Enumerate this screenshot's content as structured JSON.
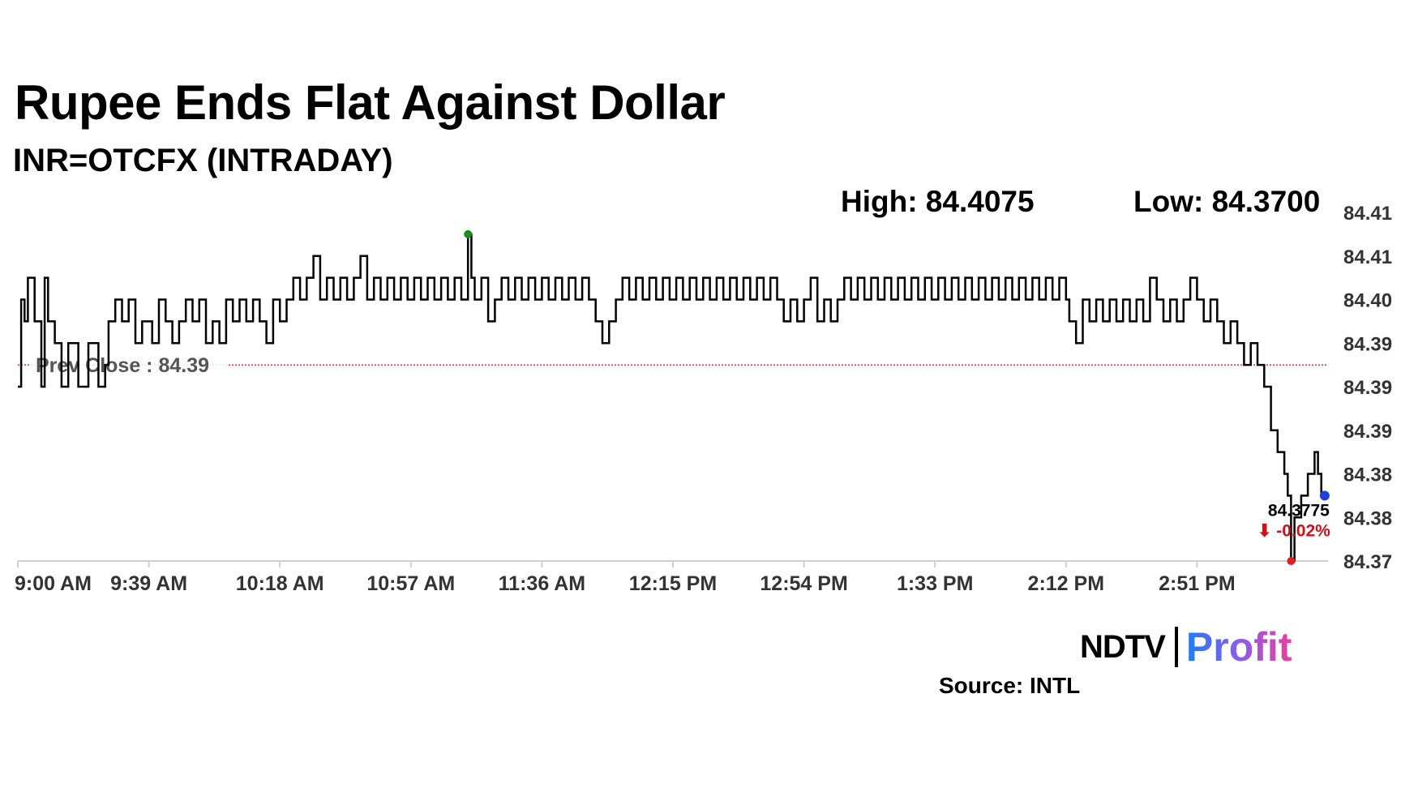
{
  "header": {
    "title": "Rupee Ends Flat Against Dollar",
    "subtitle": "INR=OTCFX (INTRADAY)",
    "high_label": "High: 84.4075",
    "low_label": "Low: 84.3700"
  },
  "footer": {
    "logo_ndtv": "NDTV",
    "logo_profit": "Profit",
    "source": "Source: INTL"
  },
  "chart_data": {
    "type": "line",
    "x_tick_labels": [
      "9:00 AM",
      "9:39 AM",
      "10:18 AM",
      "10:57 AM",
      "11:36 AM",
      "12:15 PM",
      "12:54 PM",
      "1:33 PM",
      "2:12 PM",
      "2:51 PM"
    ],
    "x_tick_minutes": [
      540,
      579,
      618,
      657,
      696,
      735,
      774,
      813,
      852,
      891
    ],
    "x_range_minutes": [
      540,
      930
    ],
    "y_tick_values": [
      84.37,
      84.375,
      84.38,
      84.385,
      84.39,
      84.395,
      84.4,
      84.405,
      84.41
    ],
    "y_tick_labels": [
      "84.37",
      "84.38",
      "84.38",
      "84.39",
      "84.39",
      "84.39",
      "84.40",
      "84.41",
      "84.41"
    ],
    "y_range": [
      84.37,
      84.41
    ],
    "y_axis_position": "right",
    "grid": false,
    "prev_close": {
      "value": 84.3925,
      "label": "Prev Close : 84.39",
      "color": "#e0303a"
    },
    "high": {
      "time_minutes": 674,
      "value": 84.4075,
      "color": "#1a8a1a"
    },
    "low": {
      "time_minutes": 919,
      "value": 84.37,
      "color": "#e02020"
    },
    "last": {
      "time_minutes": 929,
      "value": 84.3775,
      "label": "84.3775",
      "change_label": "⬇ -0.02%",
      "color": "#1f3fd8",
      "change_color": "#d0101a"
    },
    "series": [
      {
        "color": "#000000",
        "points": [
          [
            540,
            84.39
          ],
          [
            541,
            84.4
          ],
          [
            542,
            84.3975
          ],
          [
            543,
            84.4025
          ],
          [
            545,
            84.3975
          ],
          [
            547,
            84.39
          ],
          [
            548,
            84.4025
          ],
          [
            549,
            84.3975
          ],
          [
            551,
            84.395
          ],
          [
            553,
            84.39
          ],
          [
            555,
            84.395
          ],
          [
            558,
            84.39
          ],
          [
            561,
            84.395
          ],
          [
            564,
            84.39
          ],
          [
            566,
            84.3925
          ],
          [
            567,
            84.3975
          ],
          [
            569,
            84.4
          ],
          [
            571,
            84.3975
          ],
          [
            573,
            84.4
          ],
          [
            575,
            84.395
          ],
          [
            577,
            84.3975
          ],
          [
            580,
            84.395
          ],
          [
            582,
            84.4
          ],
          [
            584,
            84.3975
          ],
          [
            586,
            84.395
          ],
          [
            588,
            84.3975
          ],
          [
            590,
            84.4
          ],
          [
            592,
            84.3975
          ],
          [
            594,
            84.4
          ],
          [
            596,
            84.395
          ],
          [
            598,
            84.3975
          ],
          [
            600,
            84.395
          ],
          [
            602,
            84.4
          ],
          [
            604,
            84.3975
          ],
          [
            606,
            84.4
          ],
          [
            608,
            84.3975
          ],
          [
            610,
            84.4
          ],
          [
            612,
            84.3975
          ],
          [
            614,
            84.395
          ],
          [
            616,
            84.4
          ],
          [
            618,
            84.3975
          ],
          [
            620,
            84.4
          ],
          [
            622,
            84.4025
          ],
          [
            624,
            84.4
          ],
          [
            626,
            84.4025
          ],
          [
            628,
            84.405
          ],
          [
            630,
            84.4
          ],
          [
            632,
            84.4025
          ],
          [
            634,
            84.4
          ],
          [
            636,
            84.4025
          ],
          [
            638,
            84.4
          ],
          [
            640,
            84.4025
          ],
          [
            642,
            84.405
          ],
          [
            644,
            84.4
          ],
          [
            646,
            84.4025
          ],
          [
            648,
            84.4
          ],
          [
            650,
            84.4025
          ],
          [
            652,
            84.4
          ],
          [
            654,
            84.4025
          ],
          [
            656,
            84.4
          ],
          [
            658,
            84.4025
          ],
          [
            660,
            84.4
          ],
          [
            662,
            84.4025
          ],
          [
            664,
            84.4
          ],
          [
            666,
            84.4025
          ],
          [
            668,
            84.4
          ],
          [
            670,
            84.4025
          ],
          [
            672,
            84.4
          ],
          [
            674,
            84.4075
          ],
          [
            675,
            84.4025
          ],
          [
            676,
            84.4
          ],
          [
            678,
            84.4025
          ],
          [
            680,
            84.3975
          ],
          [
            682,
            84.4
          ],
          [
            684,
            84.4025
          ],
          [
            686,
            84.4
          ],
          [
            688,
            84.4025
          ],
          [
            690,
            84.4
          ],
          [
            692,
            84.4025
          ],
          [
            694,
            84.4
          ],
          [
            696,
            84.4025
          ],
          [
            698,
            84.4
          ],
          [
            700,
            84.4025
          ],
          [
            702,
            84.4
          ],
          [
            704,
            84.4025
          ],
          [
            706,
            84.4
          ],
          [
            708,
            84.4025
          ],
          [
            710,
            84.4
          ],
          [
            712,
            84.3975
          ],
          [
            714,
            84.395
          ],
          [
            716,
            84.3975
          ],
          [
            718,
            84.4
          ],
          [
            720,
            84.4025
          ],
          [
            722,
            84.4
          ],
          [
            724,
            84.4025
          ],
          [
            726,
            84.4
          ],
          [
            728,
            84.4025
          ],
          [
            730,
            84.4
          ],
          [
            732,
            84.4025
          ],
          [
            734,
            84.4
          ],
          [
            736,
            84.4025
          ],
          [
            738,
            84.4
          ],
          [
            740,
            84.4025
          ],
          [
            742,
            84.4
          ],
          [
            744,
            84.4025
          ],
          [
            746,
            84.4
          ],
          [
            748,
            84.4025
          ],
          [
            750,
            84.4
          ],
          [
            752,
            84.4025
          ],
          [
            754,
            84.4
          ],
          [
            756,
            84.4025
          ],
          [
            758,
            84.4
          ],
          [
            760,
            84.4025
          ],
          [
            762,
            84.4
          ],
          [
            764,
            84.4025
          ],
          [
            766,
            84.4
          ],
          [
            768,
            84.3975
          ],
          [
            770,
            84.4
          ],
          [
            772,
            84.3975
          ],
          [
            774,
            84.4
          ],
          [
            776,
            84.4025
          ],
          [
            778,
            84.3975
          ],
          [
            780,
            84.4
          ],
          [
            782,
            84.3975
          ],
          [
            784,
            84.4
          ],
          [
            786,
            84.4025
          ],
          [
            788,
            84.4
          ],
          [
            790,
            84.4025
          ],
          [
            792,
            84.4
          ],
          [
            794,
            84.4025
          ],
          [
            796,
            84.4
          ],
          [
            798,
            84.4025
          ],
          [
            800,
            84.4
          ],
          [
            802,
            84.4025
          ],
          [
            804,
            84.4
          ],
          [
            806,
            84.4025
          ],
          [
            808,
            84.4
          ],
          [
            810,
            84.4025
          ],
          [
            812,
            84.4
          ],
          [
            814,
            84.4025
          ],
          [
            816,
            84.4
          ],
          [
            818,
            84.4025
          ],
          [
            820,
            84.4
          ],
          [
            822,
            84.4025
          ],
          [
            824,
            84.4
          ],
          [
            826,
            84.4025
          ],
          [
            828,
            84.4
          ],
          [
            830,
            84.4025
          ],
          [
            832,
            84.4
          ],
          [
            834,
            84.4025
          ],
          [
            836,
            84.4
          ],
          [
            838,
            84.4025
          ],
          [
            840,
            84.4
          ],
          [
            842,
            84.4025
          ],
          [
            844,
            84.4
          ],
          [
            846,
            84.4025
          ],
          [
            848,
            84.4
          ],
          [
            850,
            84.4025
          ],
          [
            852,
            84.4
          ],
          [
            853,
            84.3975
          ],
          [
            855,
            84.395
          ],
          [
            857,
            84.4
          ],
          [
            859,
            84.3975
          ],
          [
            861,
            84.4
          ],
          [
            863,
            84.3975
          ],
          [
            865,
            84.4
          ],
          [
            867,
            84.3975
          ],
          [
            869,
            84.4
          ],
          [
            871,
            84.3975
          ],
          [
            873,
            84.4
          ],
          [
            875,
            84.3975
          ],
          [
            877,
            84.4025
          ],
          [
            879,
            84.4
          ],
          [
            881,
            84.3975
          ],
          [
            883,
            84.4
          ],
          [
            885,
            84.3975
          ],
          [
            887,
            84.4
          ],
          [
            889,
            84.4025
          ],
          [
            891,
            84.4
          ],
          [
            893,
            84.3975
          ],
          [
            895,
            84.4
          ],
          [
            897,
            84.3975
          ],
          [
            899,
            84.395
          ],
          [
            901,
            84.3975
          ],
          [
            903,
            84.395
          ],
          [
            905,
            84.3925
          ],
          [
            907,
            84.395
          ],
          [
            909,
            84.3925
          ],
          [
            911,
            84.39
          ],
          [
            913,
            84.385
          ],
          [
            915,
            84.3825
          ],
          [
            917,
            84.38
          ],
          [
            918,
            84.3775
          ],
          [
            919,
            84.37
          ],
          [
            920,
            84.375
          ],
          [
            922,
            84.3775
          ],
          [
            924,
            84.38
          ],
          [
            926,
            84.3825
          ],
          [
            927,
            84.38
          ],
          [
            928,
            84.3775
          ],
          [
            929,
            84.3775
          ]
        ]
      }
    ]
  }
}
